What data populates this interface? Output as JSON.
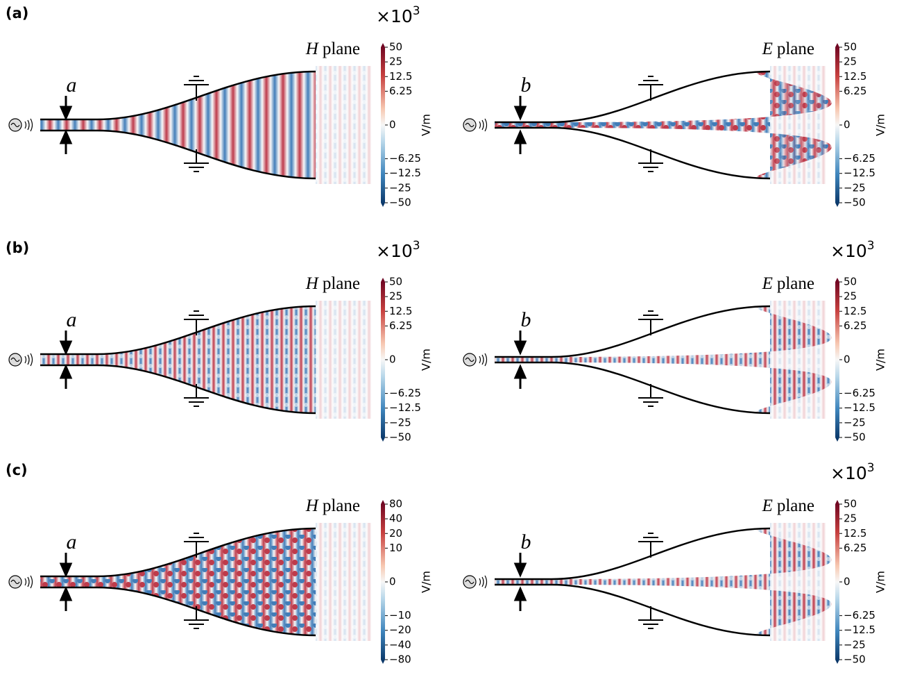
{
  "rows": [
    {
      "label": "(a)",
      "panels": [
        {
          "plane_symbol": "H",
          "plane_word": "plane",
          "dimension": "a",
          "multiplier": "×10",
          "exponent": "3",
          "unit": "V/m",
          "ticks": [
            50,
            25,
            12.5,
            6.25,
            0,
            {
              "value": -6.25,
              "label": "−6.25"
            },
            {
              "value": -12.5,
              "label": "−12.5"
            },
            {
              "value": -25,
              "label": "−25"
            },
            {
              "value": -50,
              "label": "−50"
            }
          ]
        },
        {
          "plane_symbol": "E",
          "plane_word": "plane",
          "dimension": "b",
          "unit": "V/m",
          "ticks": [
            50,
            25,
            12.5,
            6.25,
            0,
            {
              "value": -6.25,
              "label": "−6.25"
            },
            {
              "value": -12.5,
              "label": "−12.5"
            },
            {
              "value": -25,
              "label": "−25"
            },
            {
              "value": -50,
              "label": "−50"
            }
          ]
        }
      ]
    },
    {
      "label": "(b)",
      "panels": [
        {
          "plane_symbol": "H",
          "plane_word": "plane",
          "dimension": "a",
          "multiplier": "×10",
          "exponent": "3",
          "unit": "V/m",
          "ticks": [
            50,
            25,
            12.5,
            6.25,
            0,
            {
              "value": -6.25,
              "label": "−6.25"
            },
            {
              "value": -12.5,
              "label": "−12.5"
            },
            {
              "value": -25,
              "label": "−25"
            },
            {
              "value": -50,
              "label": "−50"
            }
          ]
        },
        {
          "plane_symbol": "E",
          "plane_word": "plane",
          "dimension": "b",
          "multiplier": "×10",
          "exponent": "3",
          "unit": "V/m",
          "ticks": [
            50,
            25,
            12.5,
            6.25,
            0,
            {
              "value": -6.25,
              "label": "−6.25"
            },
            {
              "value": -12.5,
              "label": "−12.5"
            },
            {
              "value": -25,
              "label": "−25"
            },
            {
              "value": -50,
              "label": "−50"
            }
          ]
        }
      ]
    },
    {
      "label": "(c)",
      "panels": [
        {
          "plane_symbol": "H",
          "plane_word": "plane",
          "dimension": "a",
          "unit": "V/m",
          "ticks": [
            80,
            40,
            20,
            10,
            0,
            {
              "value": -10,
              "label": "−10"
            },
            {
              "value": -20,
              "label": "−20"
            },
            {
              "value": -40,
              "label": "−40"
            },
            {
              "value": -80,
              "label": "−80"
            }
          ]
        },
        {
          "plane_symbol": "E",
          "plane_word": "plane",
          "dimension": "b",
          "multiplier": "×10",
          "exponent": "3",
          "unit": "V/m",
          "ticks": [
            50,
            25,
            12.5,
            6.25,
            0,
            {
              "value": -6.25,
              "label": "−6.25"
            },
            {
              "value": -12.5,
              "label": "−12.5"
            },
            {
              "value": -25,
              "label": "−25"
            },
            {
              "value": -50,
              "label": "−50"
            }
          ]
        }
      ]
    }
  ]
}
